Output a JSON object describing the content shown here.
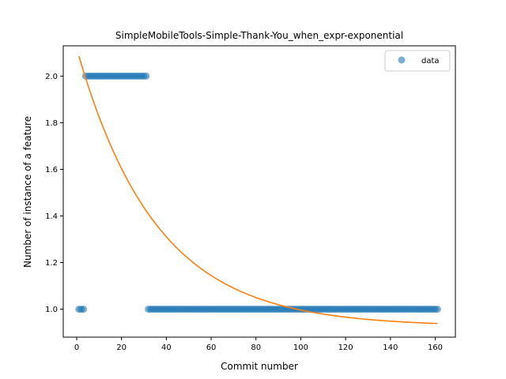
{
  "chart_data": {
    "type": "scatter",
    "title": "SimpleMobileTools-Simple-Thank-You_when_expr-exponential",
    "xlabel": "Commit number",
    "ylabel": "Number of instance of a feature",
    "xlim": [
      -6,
      169
    ],
    "ylim": [
      0.88,
      2.13
    ],
    "xticks": [
      0,
      20,
      40,
      60,
      80,
      100,
      120,
      140,
      160
    ],
    "yticks": [
      1.0,
      1.2,
      1.4,
      1.6,
      1.8,
      2.0
    ],
    "ytick_labels": [
      "1.0",
      "1.2",
      "1.4",
      "1.6",
      "1.8",
      "2.0"
    ],
    "legend": {
      "position": "top-right",
      "entries": [
        "data"
      ]
    },
    "series": [
      {
        "name": "data",
        "kind": "points",
        "color": "#1f77b4",
        "segments": [
          {
            "x_start": 1,
            "x_end": 3,
            "y": 1.0
          },
          {
            "x_start": 4,
            "x_end": 31,
            "y": 2.0
          },
          {
            "x_start": 32,
            "x_end": 161,
            "y": 1.0
          }
        ]
      },
      {
        "kind": "fit-line",
        "color": "#ff7f0e",
        "model": "exponential",
        "params": {
          "a": 1.193,
          "b": 0.0283,
          "c": 0.926
        },
        "x_range": [
          1,
          161
        ]
      }
    ]
  }
}
